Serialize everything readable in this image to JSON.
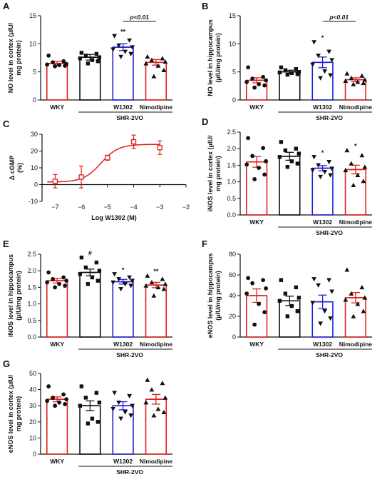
{
  "colors": {
    "red": "#e0201b",
    "black": "#111111",
    "blue": "#1f1fd6"
  },
  "chart_data": [
    {
      "panel": "A",
      "type": "bar",
      "categories": [
        "WKY",
        "",
        "W1302",
        "Nimodipine"
      ],
      "colors": [
        "red",
        "black",
        "blue",
        "red"
      ],
      "markers": [
        "circle",
        "square",
        "triangle-down",
        "triangle"
      ],
      "values": [
        6.5,
        7.6,
        9.4,
        6.7
      ],
      "errors": [
        0.35,
        0.5,
        0.6,
        0.5
      ],
      "points": [
        [
          7.9,
          6.9,
          6.7,
          6.4,
          6.3,
          6.2,
          6.1,
          6.0
        ],
        [
          8.4,
          8.2,
          7.9,
          7.6,
          7.4,
          7.1,
          6.9,
          6.5
        ],
        [
          11.4,
          10.6,
          9.7,
          9.4,
          9.0,
          8.6,
          8.2,
          7.7
        ],
        [
          7.7,
          7.4,
          7.1,
          6.8,
          6.5,
          6.1,
          5.3,
          4.2
        ]
      ],
      "ylabel": "NO level in cortex (μIU/ mg protein)",
      "ylim": [
        0,
        15
      ],
      "yticks": [
        0,
        5,
        10,
        15
      ],
      "group_label": "SHR-2VO",
      "annotations": [
        "",
        "",
        "**",
        ""
      ],
      "bracket": {
        "from": 2,
        "to": 3,
        "label": "p<0.01"
      }
    },
    {
      "panel": "B",
      "type": "bar",
      "categories": [
        "WKY",
        "",
        "W1302",
        "Nimodipine"
      ],
      "colors": [
        "red",
        "black",
        "blue",
        "red"
      ],
      "markers": [
        "circle",
        "square",
        "triangle-down",
        "triangle"
      ],
      "values": [
        3.5,
        5.0,
        6.7,
        3.6
      ],
      "errors": [
        0.45,
        0.3,
        0.95,
        0.35
      ],
      "points": [
        [
          5.8,
          4.1,
          3.8,
          3.5,
          3.2,
          2.8,
          2.6,
          2.2
        ],
        [
          5.8,
          5.5,
          5.3,
          5.0,
          4.9,
          4.8,
          4.6,
          4.5
        ],
        [
          10.3,
          8.6,
          7.9,
          7.1,
          6.3,
          5.1,
          4.4,
          3.9
        ],
        [
          4.7,
          4.3,
          3.9,
          3.6,
          3.4,
          3.2,
          3.0,
          2.8
        ]
      ],
      "ylabel": "NO level in hippocampus (μIU/mg protein)",
      "ylim": [
        0,
        15
      ],
      "yticks": [
        0,
        5,
        10,
        15
      ],
      "group_label": "SHR-2VO",
      "annotations": [
        "",
        "",
        "*",
        ""
      ],
      "bracket": {
        "from": 2,
        "to": 3,
        "label": "p<0.01"
      }
    },
    {
      "panel": "C",
      "type": "scatter-curve",
      "x": [
        -7,
        -6,
        -5,
        -4,
        -3
      ],
      "y": [
        2.0,
        4.5,
        16.0,
        25.5,
        22.0
      ],
      "errors": [
        4.0,
        6.5,
        1.5,
        4.0,
        4.0
      ],
      "fit": {
        "bottom": 1.5,
        "top": 24.0,
        "logec50": -5.25,
        "hill": 1.3
      },
      "xlabel": "Log W1302 (M)",
      "ylabel": "Δ cGMP (%)",
      "xlim": [
        -7.5,
        -2
      ],
      "xticks": [
        -7,
        -6,
        -5,
        -4,
        -3,
        -2
      ],
      "ylim": [
        -10,
        30
      ],
      "yticks": [
        -10,
        0,
        10,
        20,
        30
      ]
    },
    {
      "panel": "D",
      "type": "bar",
      "categories": [
        "WKY",
        "",
        "W1302",
        "Nimodipine"
      ],
      "colors": [
        "red",
        "black",
        "blue",
        "red"
      ],
      "markers": [
        "circle",
        "square",
        "triangle-down",
        "triangle"
      ],
      "values": [
        1.6,
        1.77,
        1.41,
        1.37
      ],
      "errors": [
        0.16,
        0.12,
        0.08,
        0.13
      ],
      "points": [
        [
          2.32,
          2.02,
          1.78,
          1.62,
          1.52,
          1.42,
          1.22,
          1.08
        ],
        [
          2.2,
          2.0,
          1.95,
          1.85,
          1.75,
          1.62,
          1.55,
          1.45
        ],
        [
          1.75,
          1.6,
          1.5,
          1.4,
          1.35,
          1.3,
          1.2,
          1.15
        ],
        [
          1.95,
          1.8,
          1.55,
          1.45,
          1.35,
          1.2,
          1.02,
          0.9
        ]
      ],
      "ylabel": "iNOS level in cortex (μIU/ mg protein)",
      "ylim": [
        0,
        2.5
      ],
      "yticks": [
        0.0,
        0.5,
        1.0,
        1.5,
        2.0,
        2.5
      ],
      "group_label": "SHR-2VO",
      "annotations": [
        "",
        "",
        "*",
        "*"
      ]
    },
    {
      "panel": "E",
      "type": "bar",
      "categories": [
        "WKY",
        "",
        "W1302",
        "Nimodipine"
      ],
      "colors": [
        "red",
        "black",
        "blue",
        "red"
      ],
      "markers": [
        "circle",
        "square",
        "triangle-down",
        "triangle"
      ],
      "values": [
        1.7,
        1.95,
        1.67,
        1.57
      ],
      "errors": [
        0.07,
        0.1,
        0.07,
        0.08
      ],
      "points": [
        [
          1.95,
          1.8,
          1.75,
          1.7,
          1.65,
          1.6,
          1.55,
          1.5
        ],
        [
          2.4,
          2.25,
          2.1,
          2.0,
          1.9,
          1.8,
          1.7,
          1.6
        ],
        [
          1.9,
          1.8,
          1.75,
          1.7,
          1.65,
          1.6,
          1.55,
          1.45
        ],
        [
          1.85,
          1.75,
          1.65,
          1.6,
          1.55,
          1.5,
          1.45,
          1.25
        ]
      ],
      "ylabel": "iNOS level in hippocampus (μIU/mg protein)",
      "ylim": [
        0,
        2.5
      ],
      "yticks": [
        0.0,
        0.5,
        1.0,
        1.5,
        2.0,
        2.5
      ],
      "group_label": "SHR-2VO",
      "annotations": [
        "",
        "#",
        "*",
        "**"
      ]
    },
    {
      "panel": "F",
      "type": "bar",
      "categories": [
        "WKY",
        "",
        "W1302",
        "Nimodipine"
      ],
      "colors": [
        "red",
        "black",
        "blue",
        "red"
      ],
      "markers": [
        "circle",
        "square",
        "triangle-down",
        "triangle"
      ],
      "values": [
        40,
        35,
        34,
        38
      ],
      "errors": [
        6.5,
        4.5,
        6.5,
        5.0
      ],
      "points": [
        [
          57,
          55,
          52,
          47,
          42,
          32,
          24,
          12
        ],
        [
          55,
          48,
          42,
          38,
          35,
          30,
          25,
          20
        ],
        [
          56,
          55,
          50,
          44,
          33,
          25,
          18,
          13
        ],
        [
          65,
          48,
          42,
          38,
          36,
          32,
          25,
          20
        ]
      ],
      "ylabel": "eNOS level in hippocampus (μIU/mg protein)",
      "ylim": [
        0,
        80
      ],
      "yticks": [
        0,
        20,
        40,
        60,
        80
      ],
      "group_label": "SHR-2VO",
      "annotations": [
        "",
        "",
        "",
        ""
      ]
    },
    {
      "panel": "G",
      "type": "bar",
      "categories": [
        "WKY",
        "",
        "W1302",
        "Nimodipine"
      ],
      "colors": [
        "red",
        "black",
        "blue",
        "red"
      ],
      "markers": [
        "circle",
        "square",
        "triangle-down",
        "triangle"
      ],
      "values": [
        34,
        30,
        30,
        34
      ],
      "errors": [
        1.5,
        3.0,
        2.5,
        3.0
      ],
      "points": [
        [
          42,
          37,
          35,
          34,
          33,
          32,
          31,
          30
        ],
        [
          42,
          38,
          35,
          32,
          30,
          22,
          20,
          19
        ],
        [
          38,
          36,
          32,
          30,
          28,
          26,
          24,
          22
        ],
        [
          46,
          44,
          40,
          35,
          32,
          28,
          26,
          24
        ]
      ],
      "ylabel": "eNOS level in cortex (μIU/ mg protein)",
      "ylim": [
        0,
        50
      ],
      "yticks": [
        0,
        10,
        20,
        30,
        40,
        50
      ],
      "group_label": "SHR-2VO",
      "annotations": [
        "",
        "",
        "",
        ""
      ]
    }
  ]
}
